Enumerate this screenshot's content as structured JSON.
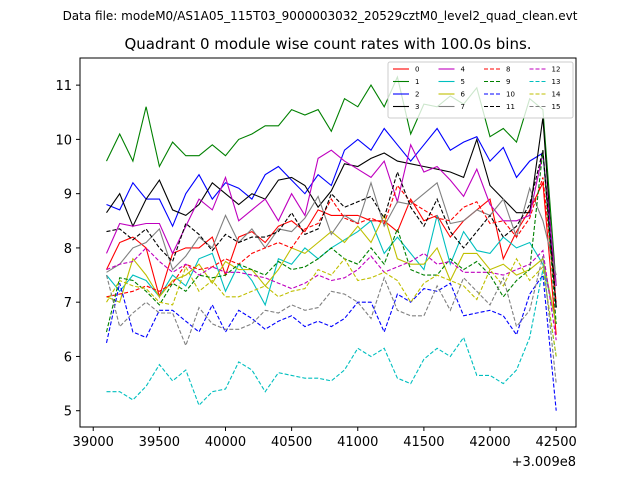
{
  "suptitle": "Data file: modeM0/AS1A05_115T03_9000003032_20529cztM0_level2_quad_clean.evt",
  "chart_data": {
    "type": "line",
    "title": "Quadrant 0 module wise count rates with 100.0s bins.",
    "xlabel": "",
    "ylabel": "",
    "x_offset_label": "+3.009e8",
    "xlim": [
      38900,
      42650
    ],
    "ylim": [
      4.7,
      11.5
    ],
    "xticks": [
      39000,
      39500,
      40000,
      40500,
      41000,
      41500,
      42000,
      42500
    ],
    "yticks": [
      5,
      6,
      7,
      8,
      9,
      10,
      11
    ],
    "legend_position": "upper right",
    "x": [
      39100,
      39200,
      39300,
      39400,
      39500,
      39600,
      39700,
      39800,
      39900,
      40000,
      40100,
      40200,
      40300,
      40400,
      40500,
      40600,
      40700,
      40800,
      40900,
      41000,
      41100,
      41200,
      41300,
      41400,
      41500,
      41600,
      41700,
      41800,
      41900,
      42000,
      42100,
      42200,
      42300,
      42400,
      42500
    ],
    "series": [
      {
        "name": "0",
        "color": "#ff0000",
        "dash": "solid",
        "values": [
          7.6,
          8.1,
          8.2,
          8.0,
          7.1,
          7.9,
          8.0,
          8.0,
          8.2,
          7.5,
          8.2,
          8.3,
          8.1,
          8.4,
          8.5,
          8.3,
          8.7,
          8.6,
          8.6,
          8.6,
          8.5,
          8.5,
          8.3,
          8.9,
          8.5,
          8.6,
          8.2,
          8.5,
          8.7,
          8.9,
          7.8,
          8.3,
          8.7,
          9.2,
          6.4
        ]
      },
      {
        "name": "1",
        "color": "#008000",
        "dash": "solid",
        "values": [
          9.6,
          10.1,
          9.6,
          10.6,
          9.5,
          9.95,
          9.7,
          9.7,
          9.9,
          9.7,
          10.0,
          10.1,
          10.25,
          10.25,
          10.55,
          10.45,
          10.55,
          10.15,
          10.75,
          10.6,
          11.0,
          10.6,
          11.15,
          10.1,
          10.65,
          10.6,
          10.8,
          10.65,
          10.95,
          10.05,
          10.2,
          9.95,
          10.75,
          10.55,
          7.3
        ]
      },
      {
        "name": "2",
        "color": "#0000ff",
        "dash": "solid",
        "values": [
          8.8,
          8.7,
          9.2,
          8.9,
          8.9,
          8.4,
          9.0,
          9.35,
          8.9,
          9.2,
          9.1,
          8.9,
          9.35,
          9.5,
          9.25,
          9.0,
          9.35,
          9.15,
          9.8,
          10.0,
          9.8,
          10.2,
          9.9,
          9.6,
          9.9,
          10.2,
          9.8,
          9.95,
          10.05,
          9.6,
          9.85,
          9.3,
          9.6,
          9.75,
          6.9
        ]
      },
      {
        "name": "3",
        "color": "#000000",
        "dash": "solid",
        "values": [
          8.65,
          9.0,
          8.4,
          8.9,
          9.25,
          8.7,
          8.6,
          8.8,
          9.2,
          9.0,
          8.8,
          9.0,
          8.9,
          9.25,
          9.3,
          9.15,
          8.75,
          9.05,
          9.55,
          9.5,
          9.65,
          9.75,
          9.6,
          9.55,
          9.5,
          9.45,
          9.4,
          9.3,
          10.0,
          9.15,
          8.9,
          8.65,
          8.65,
          10.4,
          6.9
        ]
      },
      {
        "name": "4",
        "color": "#bf00bf",
        "dash": "solid",
        "values": [
          7.9,
          8.45,
          8.4,
          8.45,
          8.45,
          7.9,
          8.4,
          8.9,
          8.7,
          9.3,
          8.5,
          8.7,
          8.9,
          8.5,
          9.0,
          8.6,
          9.65,
          9.8,
          9.6,
          9.45,
          9.3,
          9.6,
          8.85,
          9.9,
          9.4,
          9.5,
          9.25,
          8.95,
          9.45,
          8.8,
          8.5,
          8.5,
          8.6,
          9.75,
          7.3
        ]
      },
      {
        "name": "5",
        "color": "#00bfbf",
        "dash": "solid",
        "values": [
          7.5,
          7.2,
          7.5,
          7.4,
          7.1,
          7.5,
          7.3,
          7.8,
          7.9,
          7.2,
          7.7,
          7.4,
          6.95,
          7.8,
          7.7,
          8.0,
          7.8,
          8.0,
          8.15,
          8.3,
          8.5,
          7.9,
          8.2,
          7.9,
          7.6,
          8.6,
          7.7,
          8.3,
          7.95,
          7.9,
          8.2,
          8.0,
          8.1,
          7.7,
          6.6
        ]
      },
      {
        "name": "6",
        "color": "#bfbf00",
        "dash": "solid",
        "values": [
          7.1,
          7.0,
          7.8,
          7.5,
          7.1,
          7.4,
          7.5,
          7.7,
          7.35,
          7.75,
          7.6,
          7.6,
          7.3,
          7.6,
          8.0,
          7.9,
          8.1,
          8.3,
          8.1,
          8.4,
          8.1,
          8.6,
          7.8,
          7.7,
          7.7,
          8.0,
          7.4,
          7.9,
          7.9,
          7.6,
          7.7,
          7.5,
          7.6,
          7.8,
          6.6
        ]
      },
      {
        "name": "7",
        "color": "#808080",
        "dash": "solid",
        "values": [
          7.55,
          7.7,
          8.0,
          8.1,
          8.35,
          7.6,
          7.85,
          8.2,
          8.0,
          8.6,
          8.1,
          8.35,
          8.0,
          8.35,
          8.3,
          8.55,
          8.95,
          8.25,
          8.6,
          8.45,
          9.2,
          8.4,
          8.85,
          8.8,
          9.0,
          9.2,
          8.45,
          8.5,
          8.7,
          8.6,
          8.9,
          8.2,
          9.1,
          8.5,
          7.5
        ]
      },
      {
        "name": "8",
        "color": "#ff0000",
        "dash": "dashed",
        "values": [
          7.1,
          7.15,
          7.2,
          7.3,
          7.2,
          7.35,
          7.7,
          7.6,
          7.65,
          7.8,
          7.7,
          7.9,
          8.0,
          8.1,
          8.0,
          8.35,
          8.45,
          8.9,
          8.55,
          8.45,
          8.55,
          8.45,
          9.15,
          8.85,
          8.7,
          8.55,
          8.5,
          8.75,
          8.85,
          8.45,
          8.5,
          8.2,
          8.55,
          9.3,
          7.0
        ]
      },
      {
        "name": "9",
        "color": "#008000",
        "dash": "dashed",
        "values": [
          6.45,
          7.45,
          7.4,
          7.2,
          6.95,
          7.35,
          7.2,
          7.5,
          7.45,
          7.5,
          7.7,
          7.6,
          7.5,
          7.75,
          7.6,
          7.65,
          7.8,
          8.0,
          7.8,
          7.7,
          8.0,
          7.7,
          8.35,
          7.6,
          7.5,
          7.5,
          7.8,
          7.6,
          7.75,
          7.5,
          7.1,
          7.4,
          7.6,
          9.8,
          6.6
        ]
      },
      {
        "name": "10",
        "color": "#0000ff",
        "dash": "dashed",
        "values": [
          6.25,
          7.35,
          6.45,
          6.35,
          6.85,
          6.85,
          6.65,
          6.45,
          6.95,
          6.45,
          6.85,
          6.7,
          6.5,
          6.65,
          6.75,
          6.55,
          6.65,
          6.55,
          6.7,
          7.0,
          7.0,
          6.45,
          7.15,
          7.0,
          7.25,
          7.2,
          7.35,
          6.75,
          6.8,
          6.85,
          6.75,
          6.4,
          7.15,
          7.5,
          5.0
        ]
      },
      {
        "name": "11",
        "color": "#000000",
        "dash": "dashed",
        "values": [
          8.3,
          8.35,
          8.15,
          8.35,
          8.0,
          7.75,
          8.45,
          8.25,
          7.95,
          8.25,
          8.1,
          8.2,
          8.2,
          8.3,
          8.65,
          8.25,
          8.35,
          9.0,
          8.75,
          8.85,
          8.95,
          8.55,
          9.4,
          8.75,
          8.4,
          8.9,
          8.3,
          8.0,
          8.3,
          8.6,
          8.2,
          8.4,
          8.8,
          9.8,
          6.9
        ]
      },
      {
        "name": "12",
        "color": "#bf00bf",
        "dash": "dashed",
        "values": [
          7.6,
          7.7,
          7.75,
          8.0,
          7.75,
          7.55,
          7.7,
          7.5,
          7.65,
          7.55,
          7.55,
          7.5,
          7.45,
          7.35,
          7.25,
          7.35,
          7.5,
          7.4,
          7.45,
          7.6,
          7.85,
          7.55,
          7.65,
          7.75,
          7.9,
          7.7,
          7.75,
          7.55,
          7.55,
          7.55,
          7.5,
          7.6,
          7.7,
          7.95,
          6.3
        ]
      },
      {
        "name": "13",
        "color": "#00bfbf",
        "dash": "dashed",
        "values": [
          5.35,
          5.35,
          5.2,
          5.45,
          5.85,
          5.55,
          5.75,
          5.1,
          5.35,
          5.4,
          5.9,
          5.75,
          5.35,
          5.7,
          5.65,
          5.6,
          5.6,
          5.55,
          5.75,
          6.15,
          6.0,
          6.15,
          5.6,
          5.5,
          5.95,
          6.15,
          6.0,
          6.35,
          5.65,
          5.65,
          5.5,
          5.75,
          6.35,
          7.6,
          6.0
        ]
      },
      {
        "name": "14",
        "color": "#bfbf00",
        "dash": "dashed",
        "values": [
          7.0,
          7.4,
          7.3,
          7.25,
          7.0,
          6.95,
          7.65,
          7.2,
          7.4,
          7.1,
          7.1,
          7.2,
          7.3,
          7.1,
          7.2,
          7.25,
          7.6,
          7.5,
          7.8,
          7.4,
          7.45,
          7.55,
          7.4,
          7.0,
          7.35,
          7.5,
          7.4,
          7.3,
          7.05,
          7.6,
          7.3,
          7.8,
          7.4,
          7.65,
          6.0
        ]
      },
      {
        "name": "15",
        "color": "#808080",
        "dash": "dashed",
        "values": [
          7.5,
          6.55,
          6.8,
          7.0,
          6.8,
          6.8,
          6.2,
          6.9,
          6.6,
          6.5,
          6.5,
          6.6,
          6.85,
          6.8,
          6.95,
          6.85,
          6.9,
          7.2,
          7.15,
          7.0,
          6.7,
          7.45,
          6.85,
          6.75,
          6.75,
          7.3,
          6.85,
          7.45,
          7.2,
          6.95,
          7.45,
          6.55,
          6.85,
          7.85,
          5.5
        ]
      }
    ]
  }
}
